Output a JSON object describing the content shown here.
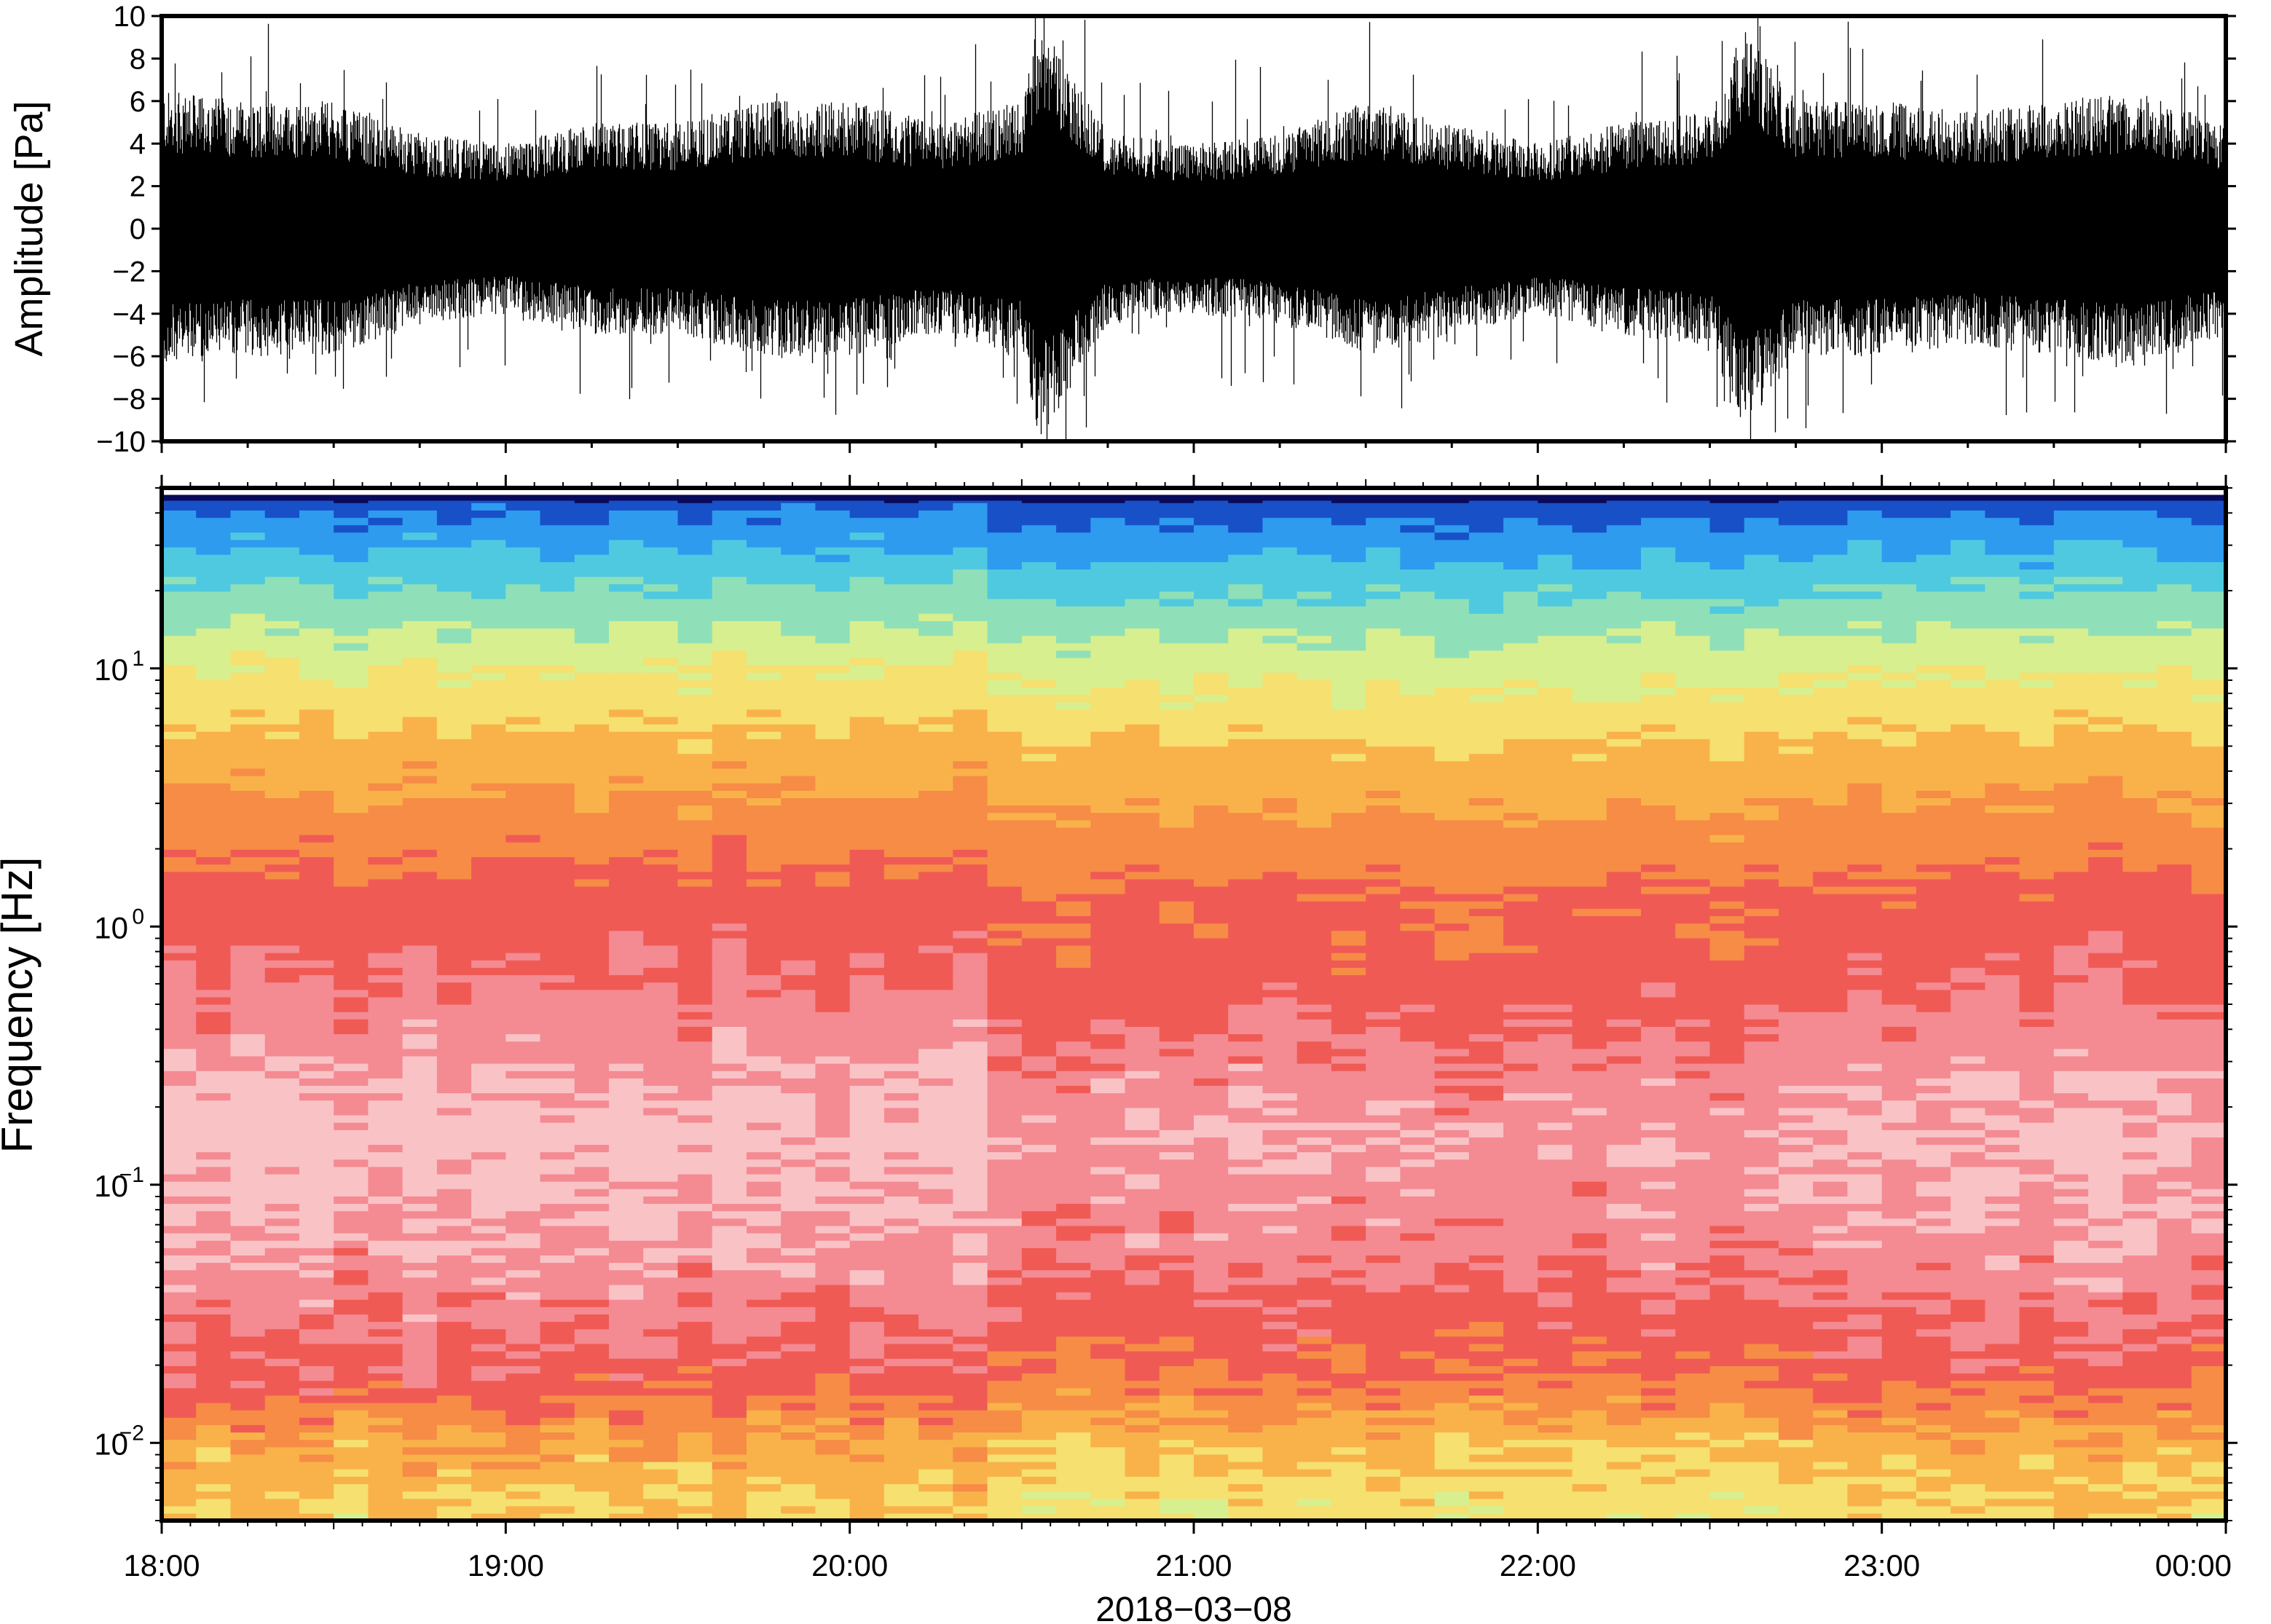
{
  "chart_data": [
    {
      "type": "line",
      "title": "",
      "xlabel": "",
      "ylabel": "Amplitude [Pa]",
      "ylim": [
        -10,
        10
      ],
      "yticks": [
        -10,
        -8,
        -6,
        -4,
        -2,
        0,
        2,
        4,
        6,
        8,
        10
      ],
      "ytick_labels": [
        "−10",
        "−8",
        "−6",
        "−4",
        "−2",
        "0",
        "2",
        "4",
        "6",
        "8",
        "10"
      ],
      "xlim": [
        "2018-03-08 18:00",
        "2018-03-09 00:00"
      ],
      "line_color": "#000000",
      "grid": false,
      "series": [
        {
          "values_description_free": true,
          "envelope_hours": [
            18.0,
            18.25,
            18.5,
            18.75,
            19.0,
            19.25,
            19.5,
            19.75,
            20.0,
            20.25,
            20.5,
            20.55,
            20.75,
            21.0,
            21.25,
            21.5,
            21.75,
            22.0,
            22.25,
            22.5,
            22.6,
            22.75,
            23.0,
            23.25,
            23.5,
            23.75,
            24.0
          ],
          "envelope_pa": [
            6.5,
            6.0,
            6.0,
            4.5,
            4.0,
            5.0,
            5.0,
            6.0,
            6.0,
            5.0,
            6.0,
            10.0,
            4.5,
            4.0,
            4.5,
            6.0,
            5.0,
            4.0,
            5.0,
            5.5,
            9.5,
            6.0,
            6.0,
            5.5,
            6.0,
            6.5,
            5.0
          ]
        }
      ]
    },
    {
      "type": "heatmap",
      "title": "",
      "xlabel": "2018−03−08",
      "ylabel": "Frequency [Hz]",
      "yscale": "log",
      "ylim": [
        0.005,
        50
      ],
      "yticks": [
        0.01,
        0.1,
        1,
        10
      ],
      "ytick_labels": [
        {
          "base": "10",
          "exp": "−2"
        },
        {
          "base": "10",
          "exp": "−1"
        },
        {
          "base": "10",
          "exp": "0"
        },
        {
          "base": "10",
          "exp": "1"
        }
      ],
      "xlim": [
        "18:00",
        "00:00"
      ],
      "x_tick_labels": [
        "18:00",
        "19:00",
        "20:00",
        "21:00",
        "22:00",
        "23:00",
        "00:00"
      ],
      "colormap_stops": [
        "#0a0a5a",
        "#1850c8",
        "#2e9bef",
        "#4fc9e0",
        "#8fe0b8",
        "#d7ef8f",
        "#f5e070",
        "#f9b24a",
        "#f68c45",
        "#f05a55",
        "#f48a92",
        "#f9c3c6"
      ],
      "time_columns": 60,
      "column_power_shift": [
        0.2,
        -0.1,
        0.3,
        0.1,
        0.2,
        -0.2,
        0.0,
        0.3,
        -0.1,
        0.1,
        0.2,
        0.0,
        -0.1,
        0.2,
        0.1,
        -0.2,
        0.3,
        0.0,
        0.1,
        -0.1,
        0.2,
        0.0,
        0.1,
        0.3,
        -0.3,
        -0.4,
        -0.5,
        -0.3,
        -0.2,
        -0.4,
        -0.3,
        -0.2,
        -0.1,
        -0.3,
        -0.4,
        -0.2,
        -0.3,
        -0.5,
        -0.4,
        -0.3,
        -0.2,
        -0.4,
        -0.3,
        -0.1,
        -0.4,
        -0.5,
        -0.3,
        -0.2,
        -0.1,
        0.0,
        -0.2,
        -0.1,
        0.1,
        0.0,
        -0.2,
        0.1,
        0.2,
        0.0,
        -0.1,
        -0.2
      ],
      "colorbar_shown": false
    }
  ]
}
